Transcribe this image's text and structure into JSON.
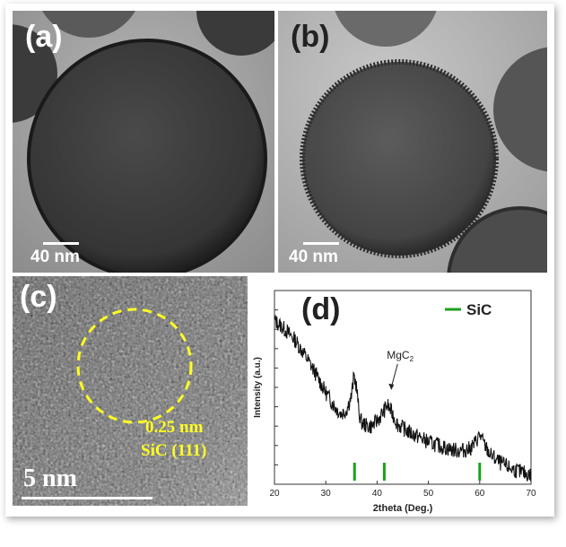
{
  "panels": {
    "a": {
      "label": "(a)",
      "scale_label": "40 nm"
    },
    "b": {
      "label": "(b)",
      "scale_label": "40 nm"
    },
    "c": {
      "label": "(c)",
      "scale_label": "5 nm",
      "spacing_label": "0.25 nm",
      "plane_label": "SiC (111)"
    },
    "d": {
      "label": "(d)",
      "peak_annotation": "MgC",
      "peak_annotation_sub": "2"
    }
  },
  "chart_data": {
    "type": "line",
    "xlabel": "2theta (Deg.)",
    "ylabel": "Intensity (a.u.)",
    "xlim": [
      20,
      70
    ],
    "xticks": [
      20,
      30,
      40,
      50,
      60,
      70
    ],
    "legend": {
      "entries": [
        "SiC"
      ],
      "placement": "top-right"
    },
    "legend_color": "#1aa11a",
    "series": [
      {
        "x": [
          20,
          22,
          24,
          26,
          28,
          30,
          32,
          33,
          34,
          35,
          35.5,
          36,
          36.5,
          37,
          38,
          39,
          40,
          41,
          42,
          43,
          44,
          46,
          48,
          50,
          52,
          54,
          56,
          58,
          59,
          60,
          61,
          62,
          64,
          66,
          68,
          70
        ],
        "values": [
          0.93,
          0.88,
          0.82,
          0.73,
          0.63,
          0.52,
          0.43,
          0.4,
          0.42,
          0.5,
          0.62,
          0.55,
          0.4,
          0.35,
          0.33,
          0.33,
          0.36,
          0.4,
          0.45,
          0.4,
          0.34,
          0.3,
          0.27,
          0.24,
          0.22,
          0.2,
          0.19,
          0.2,
          0.23,
          0.28,
          0.22,
          0.17,
          0.12,
          0.09,
          0.07,
          0.05
        ]
      }
    ],
    "reference_peaks_x": [
      35.6,
      41.4,
      60.0
    ],
    "ylim": [
      0,
      1.1
    ]
  }
}
